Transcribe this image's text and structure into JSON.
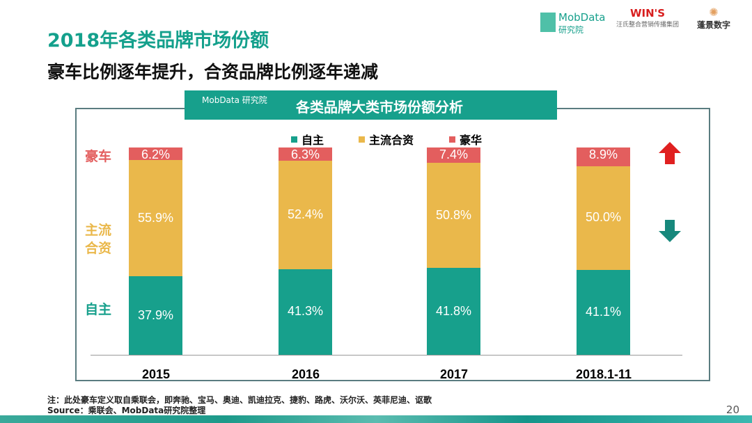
{
  "title": "2018年各类品牌市场份额",
  "subtitle": "豪车比例逐年提升，合资品牌比例逐年递减",
  "logos": [
    "MobData 研究院",
    "WIN'S 汪氏整合营销传播集团",
    "蓬景数字"
  ],
  "panel": {
    "logo": "MobData 研究院",
    "title": "各类品牌大类市场份额分析"
  },
  "side_labels": {
    "luxury": "豪车",
    "jv": "主流\n合资",
    "own": "自主"
  },
  "trend_icons": {
    "luxury": "arrow-up-icon",
    "jv": "arrow-down-icon"
  },
  "colors": {
    "自主": "#17a08c",
    "主流合资": "#eab84b",
    "豪华": "#e35e5e"
  },
  "chart_data": {
    "type": "bar",
    "stacked": true,
    "categories": [
      "2015",
      "2016",
      "2017",
      "2018.1-11"
    ],
    "series": [
      {
        "name": "自主",
        "values": [
          37.9,
          41.3,
          41.8,
          41.1
        ]
      },
      {
        "name": "主流合资",
        "values": [
          55.9,
          52.4,
          50.8,
          50.0
        ]
      },
      {
        "name": "豪华",
        "values": [
          6.2,
          6.3,
          7.4,
          8.9
        ]
      }
    ],
    "legend": "top",
    "ylim": [
      0,
      100
    ]
  },
  "note": "注：此处豪车定义取自乘联会，即奔驰、宝马、奥迪、凯迪拉克、捷豹、路虎、沃尔沃、英菲尼迪、讴歌",
  "source": "Source：乘联会、MobData研究院整理",
  "page": "20"
}
